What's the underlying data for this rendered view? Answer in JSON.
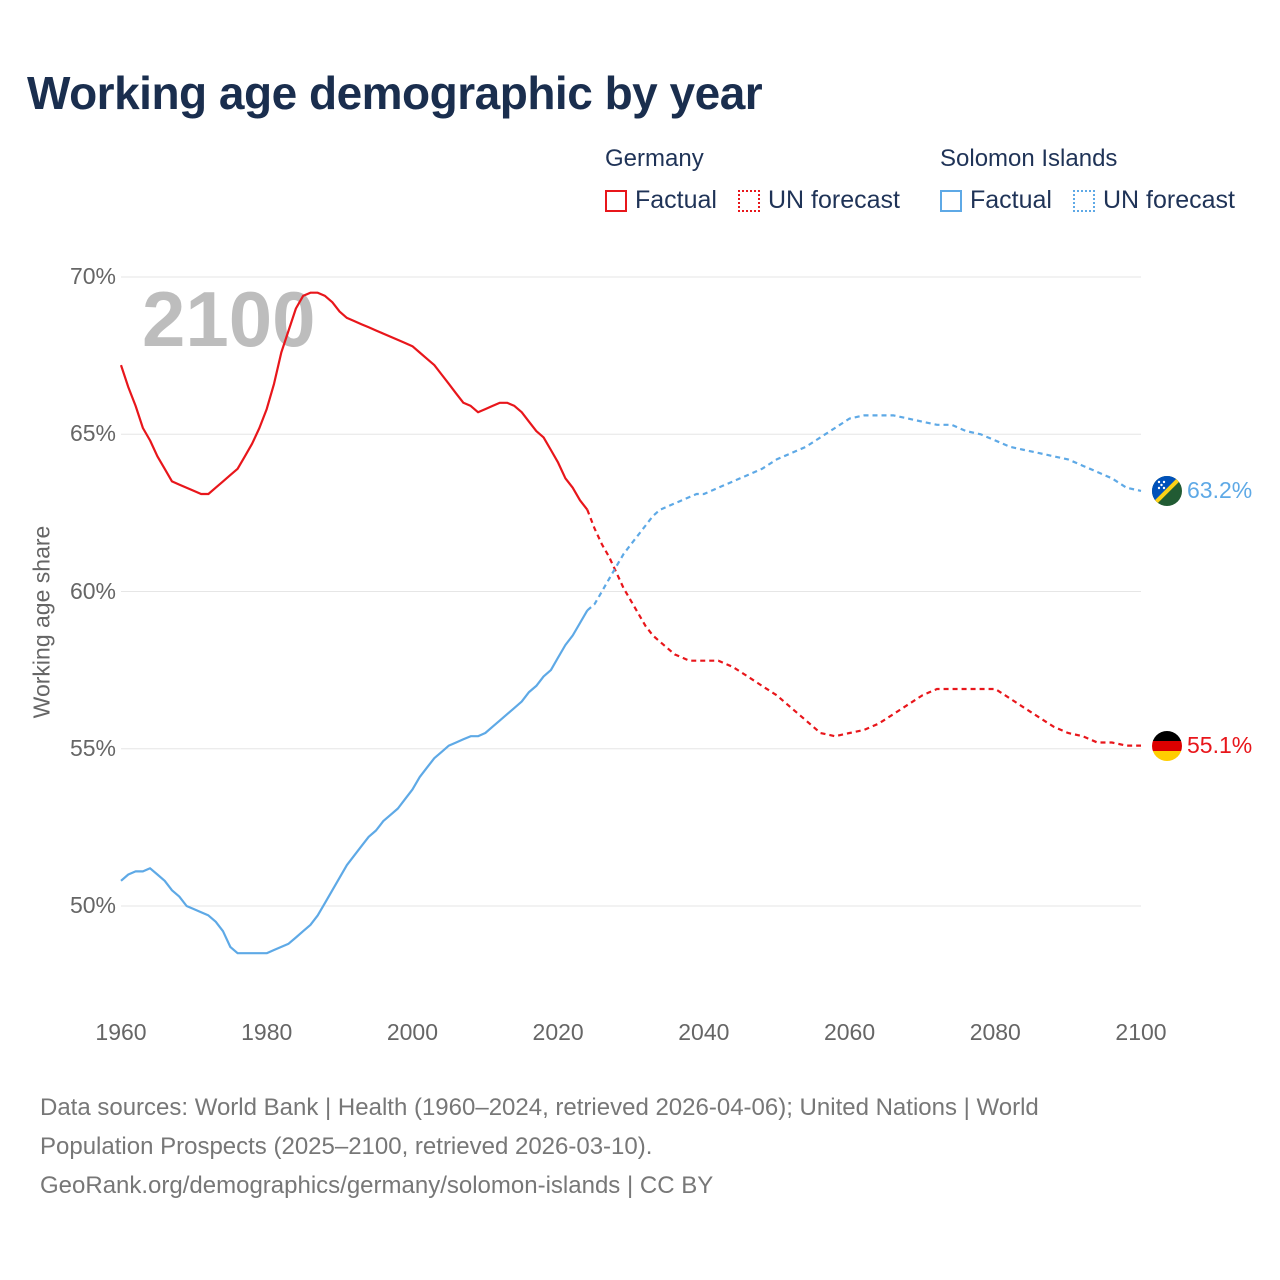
{
  "page": {
    "title": "Working age demographic by year",
    "watermark_year": "2100",
    "source_line1": "Data sources: World Bank | Health (1960–2024, retrieved 2026-04-06); United Nations | World",
    "source_line2": "Population Prospects (2025–2100, retrieved 2026-03-10).",
    "source_line3": "GeoRank.org/demographics/germany/solomon-islands | CC BY"
  },
  "legend": {
    "germany": {
      "name": "Germany",
      "factual": "Factual",
      "forecast": "UN forecast",
      "color": "#e8161b"
    },
    "solomon": {
      "name": "Solomon Islands",
      "factual": "Factual",
      "forecast": "UN forecast",
      "color": "#5ea9e6"
    }
  },
  "end_labels": {
    "germany": "55.1%",
    "solomon": "63.2%"
  },
  "flags": {
    "germany": "germany-flag-icon",
    "solomon": "solomon-islands-flag-icon"
  },
  "chart_data": {
    "type": "line",
    "title": "Working age demographic by year",
    "xlabel": "",
    "ylabel": "Working age share",
    "xlim": [
      1960,
      2100
    ],
    "ylim": [
      47,
      70
    ],
    "x_ticks": [
      1960,
      1980,
      2000,
      2020,
      2040,
      2060,
      2080,
      2100
    ],
    "x_tick_labels": [
      "1960",
      "1980",
      "2000",
      "2020",
      "2040",
      "2060",
      "2080",
      "2100"
    ],
    "y_ticks": [
      50,
      55,
      60,
      65,
      70
    ],
    "y_tick_labels": [
      "50%",
      "55%",
      "60%",
      "65%",
      "70%"
    ],
    "grid": true,
    "forecast_start": 2024,
    "series": [
      {
        "name": "Germany",
        "color": "#e8161b",
        "x": [
          1960,
          1961,
          1962,
          1963,
          1964,
          1965,
          1966,
          1967,
          1968,
          1969,
          1970,
          1971,
          1972,
          1973,
          1974,
          1975,
          1976,
          1977,
          1978,
          1979,
          1980,
          1981,
          1982,
          1983,
          1984,
          1985,
          1986,
          1987,
          1988,
          1989,
          1990,
          1991,
          1992,
          1993,
          1994,
          1995,
          1996,
          1997,
          1998,
          1999,
          2000,
          2001,
          2002,
          2003,
          2004,
          2005,
          2006,
          2007,
          2008,
          2009,
          2010,
          2011,
          2012,
          2013,
          2014,
          2015,
          2016,
          2017,
          2018,
          2019,
          2020,
          2021,
          2022,
          2023,
          2024,
          2025,
          2026,
          2027,
          2028,
          2029,
          2030,
          2031,
          2032,
          2033,
          2034,
          2035,
          2036,
          2037,
          2038,
          2039,
          2040,
          2042,
          2044,
          2046,
          2048,
          2050,
          2052,
          2054,
          2056,
          2058,
          2060,
          2062,
          2064,
          2066,
          2068,
          2070,
          2072,
          2074,
          2076,
          2078,
          2080,
          2082,
          2084,
          2086,
          2088,
          2090,
          2092,
          2094,
          2096,
          2098,
          2100
        ],
        "values": [
          67.2,
          66.5,
          65.9,
          65.2,
          64.8,
          64.3,
          63.9,
          63.5,
          63.4,
          63.3,
          63.2,
          63.1,
          63.1,
          63.3,
          63.5,
          63.7,
          63.9,
          64.3,
          64.7,
          65.2,
          65.8,
          66.6,
          67.6,
          68.3,
          69.0,
          69.4,
          69.5,
          69.5,
          69.4,
          69.2,
          68.9,
          68.7,
          68.6,
          68.5,
          68.4,
          68.3,
          68.2,
          68.1,
          68.0,
          67.9,
          67.8,
          67.6,
          67.4,
          67.2,
          66.9,
          66.6,
          66.3,
          66.0,
          65.9,
          65.7,
          65.8,
          65.9,
          66.0,
          66.0,
          65.9,
          65.7,
          65.4,
          65.1,
          64.9,
          64.5,
          64.1,
          63.6,
          63.3,
          62.9,
          62.6,
          62.0,
          61.5,
          61.1,
          60.6,
          60.1,
          59.7,
          59.3,
          58.9,
          58.6,
          58.4,
          58.2,
          58.0,
          57.9,
          57.8,
          57.8,
          57.8,
          57.8,
          57.6,
          57.3,
          57.0,
          56.7,
          56.3,
          55.9,
          55.5,
          55.4,
          55.5,
          55.6,
          55.8,
          56.1,
          56.4,
          56.7,
          56.9,
          56.9,
          56.9,
          56.9,
          56.9,
          56.6,
          56.3,
          56.0,
          55.7,
          55.5,
          55.4,
          55.2,
          55.2,
          55.1,
          55.1
        ]
      },
      {
        "name": "Solomon Islands",
        "color": "#5ea9e6",
        "x": [
          1960,
          1961,
          1962,
          1963,
          1964,
          1965,
          1966,
          1967,
          1968,
          1969,
          1970,
          1971,
          1972,
          1973,
          1974,
          1975,
          1976,
          1977,
          1978,
          1979,
          1980,
          1981,
          1982,
          1983,
          1984,
          1985,
          1986,
          1987,
          1988,
          1989,
          1990,
          1991,
          1992,
          1993,
          1994,
          1995,
          1996,
          1997,
          1998,
          1999,
          2000,
          2001,
          2002,
          2003,
          2004,
          2005,
          2006,
          2007,
          2008,
          2009,
          2010,
          2011,
          2012,
          2013,
          2014,
          2015,
          2016,
          2017,
          2018,
          2019,
          2020,
          2021,
          2022,
          2023,
          2024,
          2025,
          2026,
          2027,
          2028,
          2029,
          2030,
          2031,
          2032,
          2033,
          2034,
          2035,
          2036,
          2037,
          2038,
          2039,
          2040,
          2042,
          2044,
          2046,
          2048,
          2050,
          2052,
          2054,
          2056,
          2058,
          2060,
          2062,
          2064,
          2066,
          2068,
          2070,
          2072,
          2074,
          2076,
          2078,
          2080,
          2082,
          2084,
          2086,
          2088,
          2090,
          2092,
          2094,
          2096,
          2098,
          2100
        ],
        "values": [
          50.8,
          51.0,
          51.1,
          51.1,
          51.2,
          51.0,
          50.8,
          50.5,
          50.3,
          50.0,
          49.9,
          49.8,
          49.7,
          49.5,
          49.2,
          48.7,
          48.5,
          48.5,
          48.5,
          48.5,
          48.5,
          48.6,
          48.7,
          48.8,
          49.0,
          49.2,
          49.4,
          49.7,
          50.1,
          50.5,
          50.9,
          51.3,
          51.6,
          51.9,
          52.2,
          52.4,
          52.7,
          52.9,
          53.1,
          53.4,
          53.7,
          54.1,
          54.4,
          54.7,
          54.9,
          55.1,
          55.2,
          55.3,
          55.4,
          55.4,
          55.5,
          55.7,
          55.9,
          56.1,
          56.3,
          56.5,
          56.8,
          57.0,
          57.3,
          57.5,
          57.9,
          58.3,
          58.6,
          59.0,
          59.4,
          59.6,
          60.0,
          60.4,
          60.8,
          61.2,
          61.5,
          61.8,
          62.1,
          62.4,
          62.6,
          62.7,
          62.8,
          62.9,
          63.0,
          63.1,
          63.1,
          63.3,
          63.5,
          63.7,
          63.9,
          64.2,
          64.4,
          64.6,
          64.9,
          65.2,
          65.5,
          65.6,
          65.6,
          65.6,
          65.5,
          65.4,
          65.3,
          65.3,
          65.1,
          65.0,
          64.8,
          64.6,
          64.5,
          64.4,
          64.3,
          64.2,
          64.0,
          63.8,
          63.6,
          63.3,
          63.2
        ]
      }
    ]
  }
}
